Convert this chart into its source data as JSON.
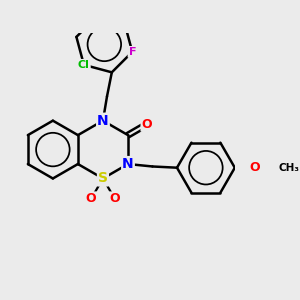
{
  "bg_color": "#ebebeb",
  "bond_color": "#000000",
  "bond_width": 1.8,
  "atom_colors": {
    "S": "#cccc00",
    "N": "#0000ff",
    "O": "#ff0000",
    "Cl": "#00bb00",
    "F": "#cc00cc"
  },
  "figsize": [
    3.0,
    3.0
  ],
  "dpi": 100
}
